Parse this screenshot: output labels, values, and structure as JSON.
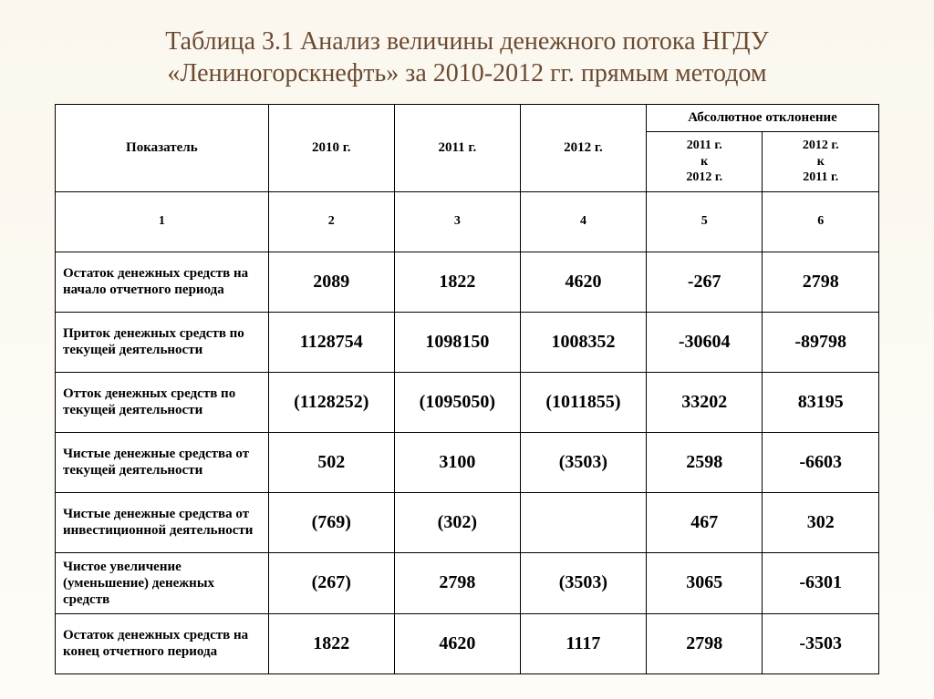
{
  "title": "Таблица 3.1 Анализ величины денежного потока НГДУ «Лениногорскнефть» за 2010-2012 гг. прямым методом",
  "headers": {
    "indicator": "Показатель",
    "y2010": "2010 г.",
    "y2011": "2011 г.",
    "y2012": "2012 г.",
    "deviation_group": "Абсолютное отклонение",
    "dev1": "2011 г.\nк\n2012 г.",
    "dev2": "2012 г.\nк\n2011 г."
  },
  "numrow": [
    "1",
    "2",
    "3",
    "4",
    "5",
    "6"
  ],
  "rows": [
    {
      "label": "Остаток денежных средств на начало отчетного периода",
      "c2010": "2089",
      "c2011": "1822",
      "c2012": "4620",
      "d1": "-267",
      "d2": "2798"
    },
    {
      "label": "Приток денежных средств по текущей деятельности",
      "c2010": "1128754",
      "c2011": "1098150",
      "c2012": "1008352",
      "d1": "-30604",
      "d2": "-89798"
    },
    {
      "label": "Отток денежных средств по текущей деятельности",
      "c2010": "(1128252)",
      "c2011": "(1095050)",
      "c2012": "(1011855)",
      "d1": "33202",
      "d2": "83195"
    },
    {
      "label": "Чистые денежные средства от текущей деятельности",
      "c2010": "502",
      "c2011": "3100",
      "c2012": "(3503)",
      "d1": "2598",
      "d2": "-6603"
    },
    {
      "label": "Чистые денежные средства от инвестиционной деятельности",
      "c2010": "(769)",
      "c2011": "(302)",
      "c2012": "",
      "d1": "467",
      "d2": "302"
    },
    {
      "label": "Чистое увеличение (уменьшение) денежных средств",
      "c2010": "(267)",
      "c2011": "2798",
      "c2012": "(3503)",
      "d1": "3065",
      "d2": "-6301"
    },
    {
      "label": "Остаток денежных средств на конец отчетного периода",
      "c2010": "1822",
      "c2011": "4620",
      "c2012": "1117",
      "d1": "2798",
      "d2": "-3503"
    }
  ]
}
